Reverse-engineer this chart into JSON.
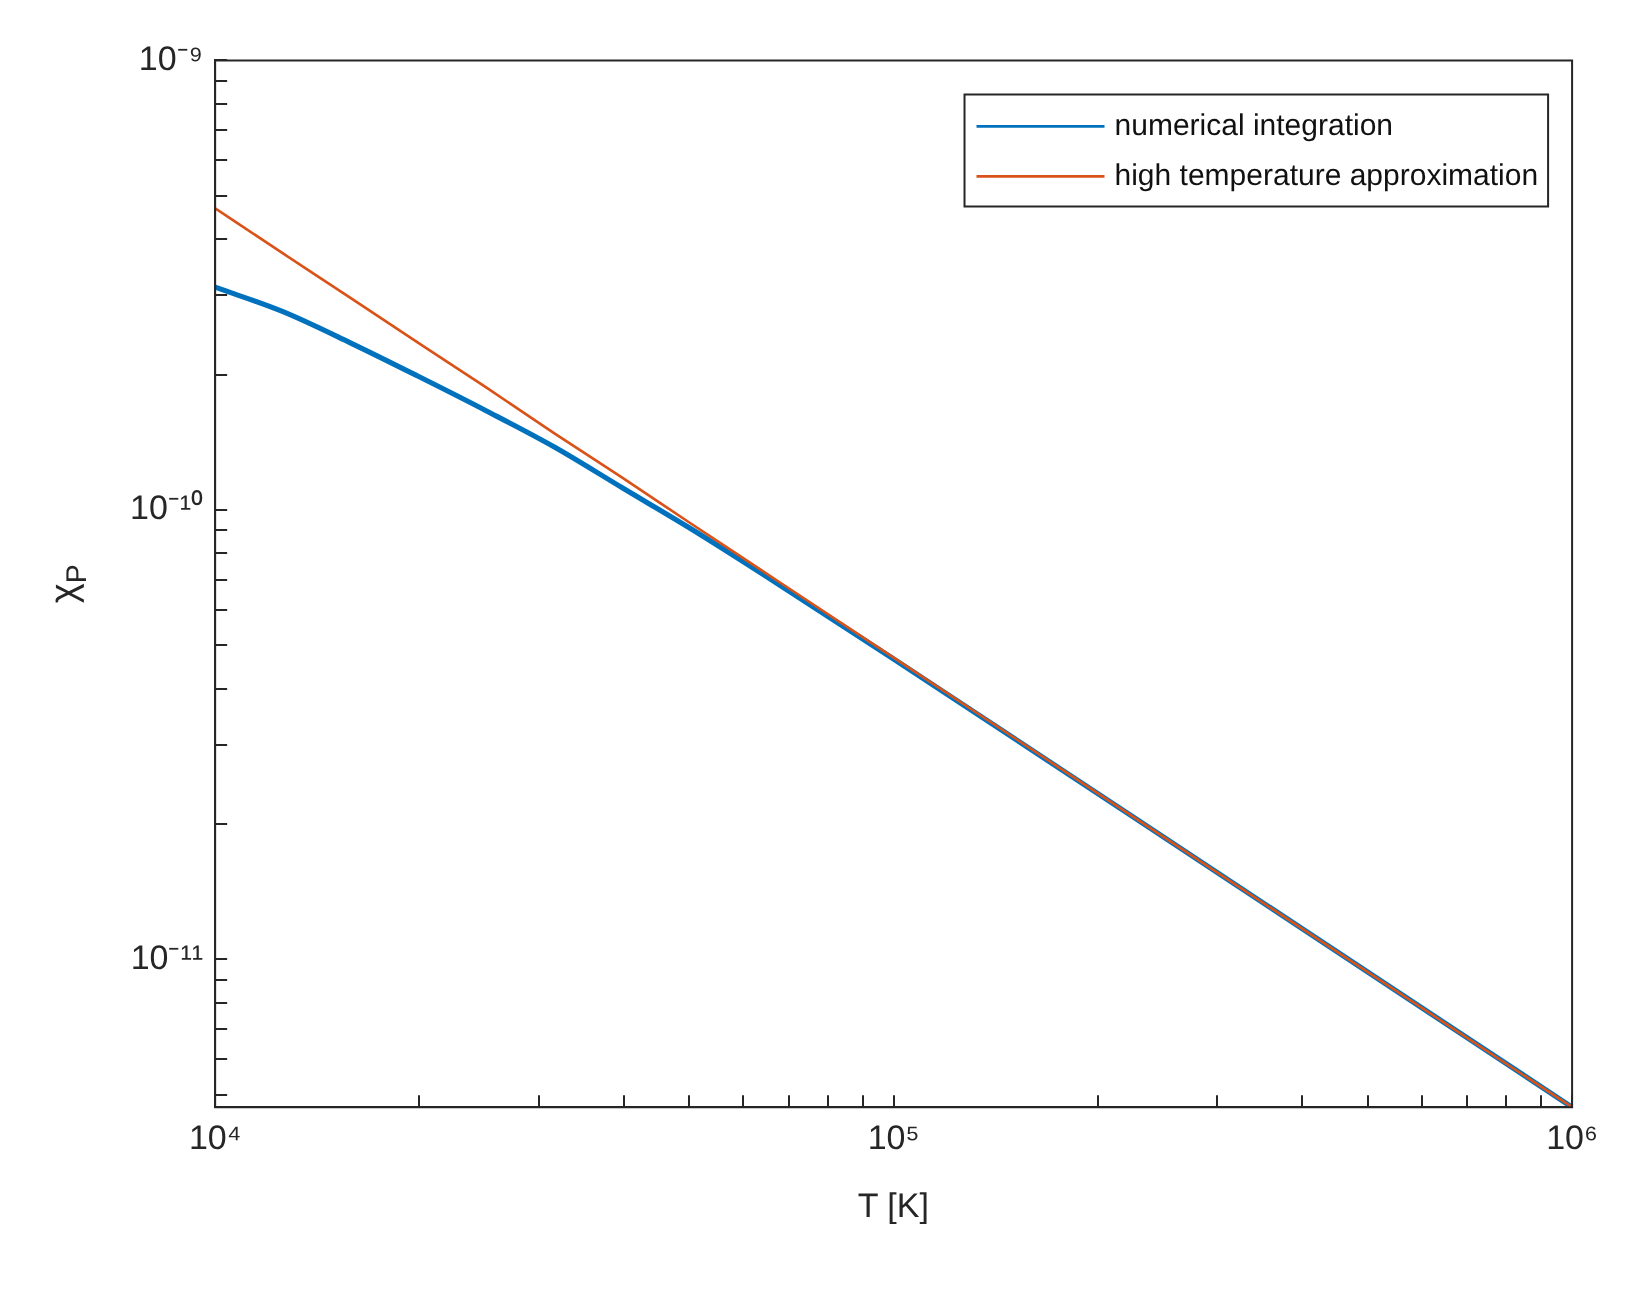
{
  "chart_data": {
    "type": "line",
    "xlabel": "T [K]",
    "ylabel": "χ$_{P}$",
    "log": "xy",
    "grid": false,
    "legend": "top right",
    "marker": "none",
    "line_style": "solid",
    "x": [
      10000,
      12589,
      15849,
      19953,
      25119,
      31623,
      39811,
      50119,
      63096,
      100000,
      316228,
      1000000
    ],
    "series": [
      {
        "name": "numerical integration",
        "color": "#0072bd",
        "values": [
          3.13e-10,
          2.76e-10,
          2.35e-10,
          1.98e-10,
          1.66e-10,
          1.38e-10,
          1.12e-10,
          9.1e-11,
          7.31e-11,
          4.66e-11,
          1.48e-11,
          4.69e-12
        ]
      },
      {
        "name": "high temperature approximation",
        "color": "#d95319",
        "values": [
          4.69e-10,
          3.72e-10,
          2.96e-10,
          2.35e-10,
          1.87e-10,
          1.48e-10,
          1.18e-10,
          9.35e-11,
          7.43e-11,
          4.69e-11,
          1.48e-11,
          4.69e-12
        ]
      }
    ],
    "xlim": [
      10000,
      1000000
    ],
    "xticks": [
      {
        "value": 10000,
        "label": "10⁴"
      },
      {
        "value": 20000,
        "label": null
      },
      {
        "value": 30000,
        "label": null
      },
      {
        "value": 40000,
        "label": null
      },
      {
        "value": 50000,
        "label": null
      },
      {
        "value": 60000,
        "label": null
      },
      {
        "value": 70000,
        "label": null
      },
      {
        "value": 80000,
        "label": null
      },
      {
        "value": 90000,
        "label": null
      },
      {
        "value": 100000,
        "label": "10⁵"
      },
      {
        "value": 200000,
        "label": null
      },
      {
        "value": 300000,
        "label": null
      },
      {
        "value": 400000,
        "label": null
      },
      {
        "value": 500000,
        "label": null
      },
      {
        "value": 600000,
        "label": null
      },
      {
        "value": 700000,
        "label": null
      },
      {
        "value": 800000,
        "label": null
      },
      {
        "value": 900000,
        "label": null
      },
      {
        "value": 1000000,
        "label": "10⁶"
      }
    ],
    "ylim": [
      4.69e-12,
      1e-09
    ],
    "yticks": [
      {
        "value": 5e-12,
        "label": null
      },
      {
        "value": 6e-12,
        "label": null
      },
      {
        "value": 7e-12,
        "label": null
      },
      {
        "value": 8e-12,
        "label": null
      },
      {
        "value": 9e-12,
        "label": null
      },
      {
        "value": 1e-11,
        "label": "10⁻¹¹"
      },
      {
        "value": 2e-11,
        "label": null
      },
      {
        "value": 3e-11,
        "label": null
      },
      {
        "value": 4e-11,
        "label": null
      },
      {
        "value": 5e-11,
        "label": null
      },
      {
        "value": 6e-11,
        "label": null
      },
      {
        "value": 7e-11,
        "label": null
      },
      {
        "value": 8e-11,
        "label": null
      },
      {
        "value": 9e-11,
        "label": null
      },
      {
        "value": 1e-10,
        "label": "10⁻¹⁰"
      },
      {
        "value": 2e-10,
        "label": null
      },
      {
        "value": 3e-10,
        "label": null
      },
      {
        "value": 4e-10,
        "label": null
      },
      {
        "value": 5e-10,
        "label": null
      },
      {
        "value": 6e-10,
        "label": null
      },
      {
        "value": 7e-10,
        "label": null
      },
      {
        "value": 8e-10,
        "label": null
      },
      {
        "value": 9e-10,
        "label": null
      },
      {
        "value": 1e-09,
        "label": "10⁻⁹"
      }
    ]
  }
}
